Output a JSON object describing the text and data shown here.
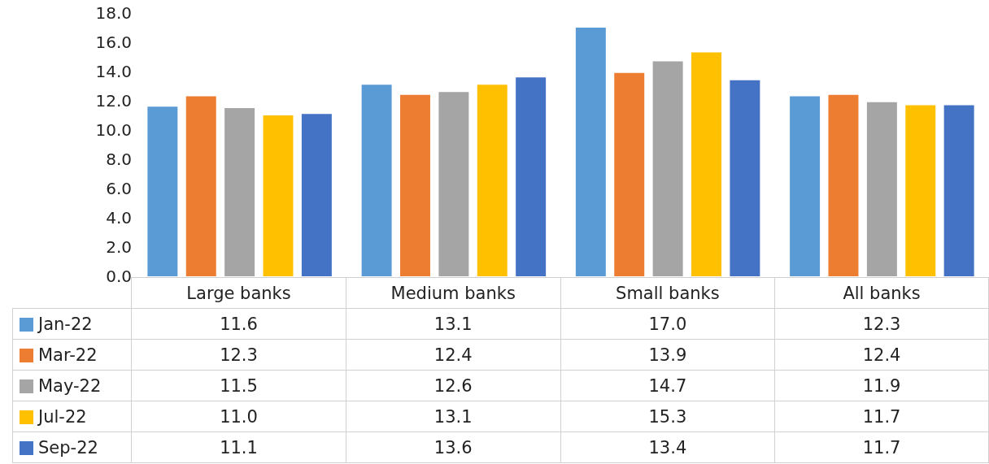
{
  "chart_data": {
    "type": "bar",
    "categories": [
      "Large banks",
      "Medium banks",
      "Small banks",
      "All banks"
    ],
    "series": [
      {
        "name": "Jan-22",
        "color": "#5b9bd5",
        "values": [
          11.6,
          13.1,
          17.0,
          12.3
        ],
        "value_labels": [
          "11.6",
          "13.1",
          "17.0",
          "12.3"
        ]
      },
      {
        "name": "Mar-22",
        "color": "#ed7d31",
        "values": [
          12.3,
          12.4,
          13.9,
          12.4
        ],
        "value_labels": [
          "12.3",
          "12.4",
          "13.9",
          "12.4"
        ]
      },
      {
        "name": "May-22",
        "color": "#a5a5a5",
        "values": [
          11.5,
          12.6,
          14.7,
          11.9
        ],
        "value_labels": [
          "11.5",
          "12.6",
          "14.7",
          "11.9"
        ]
      },
      {
        "name": "Jul-22",
        "color": "#ffc000",
        "values": [
          11.0,
          13.1,
          15.3,
          11.7
        ],
        "value_labels": [
          "11.0",
          "13.1",
          "15.3",
          "11.7"
        ]
      },
      {
        "name": "Sep-22",
        "color": "#4472c4",
        "values": [
          11.1,
          13.6,
          13.4,
          11.7
        ],
        "value_labels": [
          "11.1",
          "13.6",
          "13.4",
          "11.7"
        ]
      }
    ],
    "ylim": [
      0,
      18
    ],
    "yticks": [
      {
        "value": 0,
        "label": "0.0"
      },
      {
        "value": 2,
        "label": "2.0"
      },
      {
        "value": 4,
        "label": "4.0"
      },
      {
        "value": 6,
        "label": "6.0"
      },
      {
        "value": 8,
        "label": "8.0"
      },
      {
        "value": 10,
        "label": "10.0"
      },
      {
        "value": 12,
        "label": "12.0"
      },
      {
        "value": 14,
        "label": "14.0"
      },
      {
        "value": 16,
        "label": "16.0"
      },
      {
        "value": 18,
        "label": "18.0"
      }
    ],
    "grid": false,
    "legend": "bottom"
  }
}
